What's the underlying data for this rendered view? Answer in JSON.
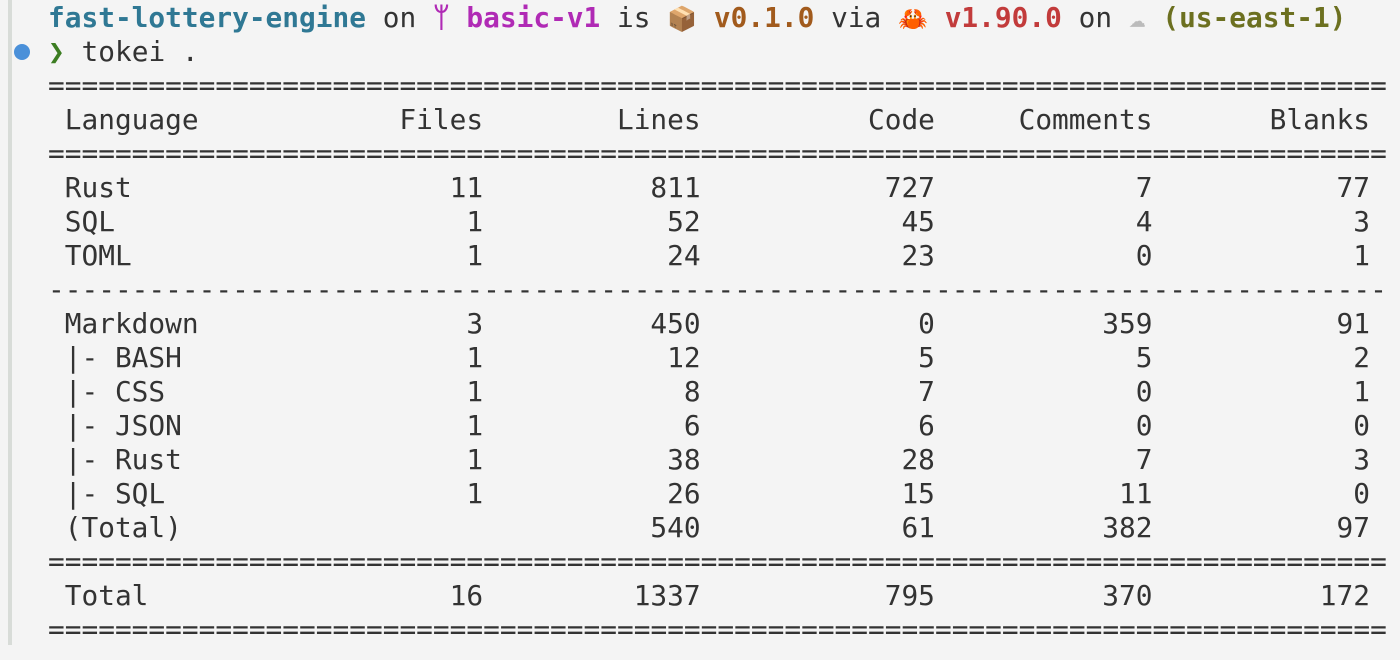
{
  "prompt": {
    "repo": "fast-lottery-engine",
    "on1": "on",
    "branch_icon": "git-branch-icon",
    "branch": "basic-v1",
    "is": "is",
    "package_icon": "📦",
    "package_version": "v0.1.0",
    "via": "via",
    "rust_icon": "🦀",
    "rust_version": "v1.90.0",
    "on2": "on",
    "cloud_icon": "☁",
    "region": "(us-east-1)",
    "chevron": "❯",
    "command": "tokei ."
  },
  "colors": {
    "repo": "#2f7894",
    "branch": "#b02ab5",
    "package": "#a15a1c",
    "rust": "#c23b3b",
    "region": "#6c7020",
    "prompt_dot": "#4a90d9",
    "chevron": "#3c7d22"
  },
  "rules": {
    "double": "================================================================================",
    "single": "--------------------------------------------------------------------------------"
  },
  "table": {
    "headers": [
      "Language",
      "Files",
      "Lines",
      "Code",
      "Comments",
      "Blanks"
    ],
    "rows": [
      [
        "Rust",
        "11",
        "811",
        "727",
        "7",
        "77"
      ],
      [
        "SQL",
        "1",
        "52",
        "45",
        "4",
        "3"
      ],
      [
        "TOML",
        "1",
        "24",
        "23",
        "0",
        "1"
      ]
    ],
    "markdown_rows": [
      [
        "Markdown",
        "3",
        "450",
        "0",
        "359",
        "91"
      ],
      [
        "|- BASH",
        "1",
        "12",
        "5",
        "5",
        "2"
      ],
      [
        "|- CSS",
        "1",
        "8",
        "7",
        "0",
        "1"
      ],
      [
        "|- JSON",
        "1",
        "6",
        "6",
        "0",
        "0"
      ],
      [
        "|- Rust",
        "1",
        "38",
        "28",
        "7",
        "3"
      ],
      [
        "|- SQL",
        "1",
        "26",
        "15",
        "11",
        "0"
      ],
      [
        "(Total)",
        "",
        "540",
        "61",
        "382",
        "97"
      ]
    ],
    "total": [
      "Total",
      "16",
      "1337",
      "795",
      "370",
      "172"
    ]
  }
}
